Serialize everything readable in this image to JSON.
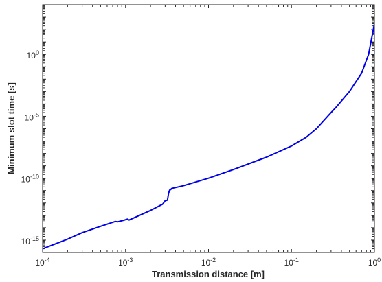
{
  "chart_data": {
    "type": "line",
    "title": "",
    "xlabel": "Transmission distance [m]",
    "ylabel": "Minimum slot time [s]",
    "xscale": "log",
    "yscale": "log",
    "xlim": [
      0.0001,
      1
    ],
    "ylim": [
      1e-16,
      10000.0
    ],
    "grid": false,
    "legend": "none",
    "xticks": [
      {
        "value": 0.0001,
        "base": "10",
        "exp": "-4"
      },
      {
        "value": 0.001,
        "base": "10",
        "exp": "-3"
      },
      {
        "value": 0.01,
        "base": "10",
        "exp": "-2"
      },
      {
        "value": 0.1,
        "base": "10",
        "exp": "-1"
      },
      {
        "value": 1,
        "base": "10",
        "exp": "0"
      }
    ],
    "yticks": [
      {
        "value": 1e-15,
        "base": "10",
        "exp": "-15"
      },
      {
        "value": 1e-10,
        "base": "10",
        "exp": "-10"
      },
      {
        "value": 1e-05,
        "base": "10",
        "exp": "-5"
      },
      {
        "value": 1,
        "base": "10",
        "exp": "0"
      }
    ],
    "series": [
      {
        "color": "#0000e6",
        "x": [
          0.0001,
          0.0002,
          0.0003,
          0.0005,
          0.00075,
          0.0008,
          0.00095,
          0.00105,
          0.0011,
          0.002,
          0.0028,
          0.003,
          0.0032,
          0.0033,
          0.0034,
          0.0035,
          0.0036,
          0.005,
          0.01,
          0.02,
          0.05,
          0.1,
          0.15,
          0.2,
          0.3,
          0.35,
          0.5,
          0.7,
          0.85,
          1.0
        ],
        "y": [
          2e-16,
          1.2e-15,
          4e-15,
          1.3e-14,
          3.2e-14,
          3e-14,
          4e-14,
          5e-14,
          4.2e-14,
          2.5e-13,
          8e-13,
          1.5e-12,
          1.7e-12,
          6e-12,
          1.1e-11,
          1.2e-11,
          1.5e-11,
          2.5e-11,
          1e-10,
          5e-10,
          5e-09,
          4e-08,
          2e-07,
          1e-06,
          2e-05,
          6e-05,
          0.001,
          0.03,
          1,
          300
        ]
      }
    ]
  }
}
